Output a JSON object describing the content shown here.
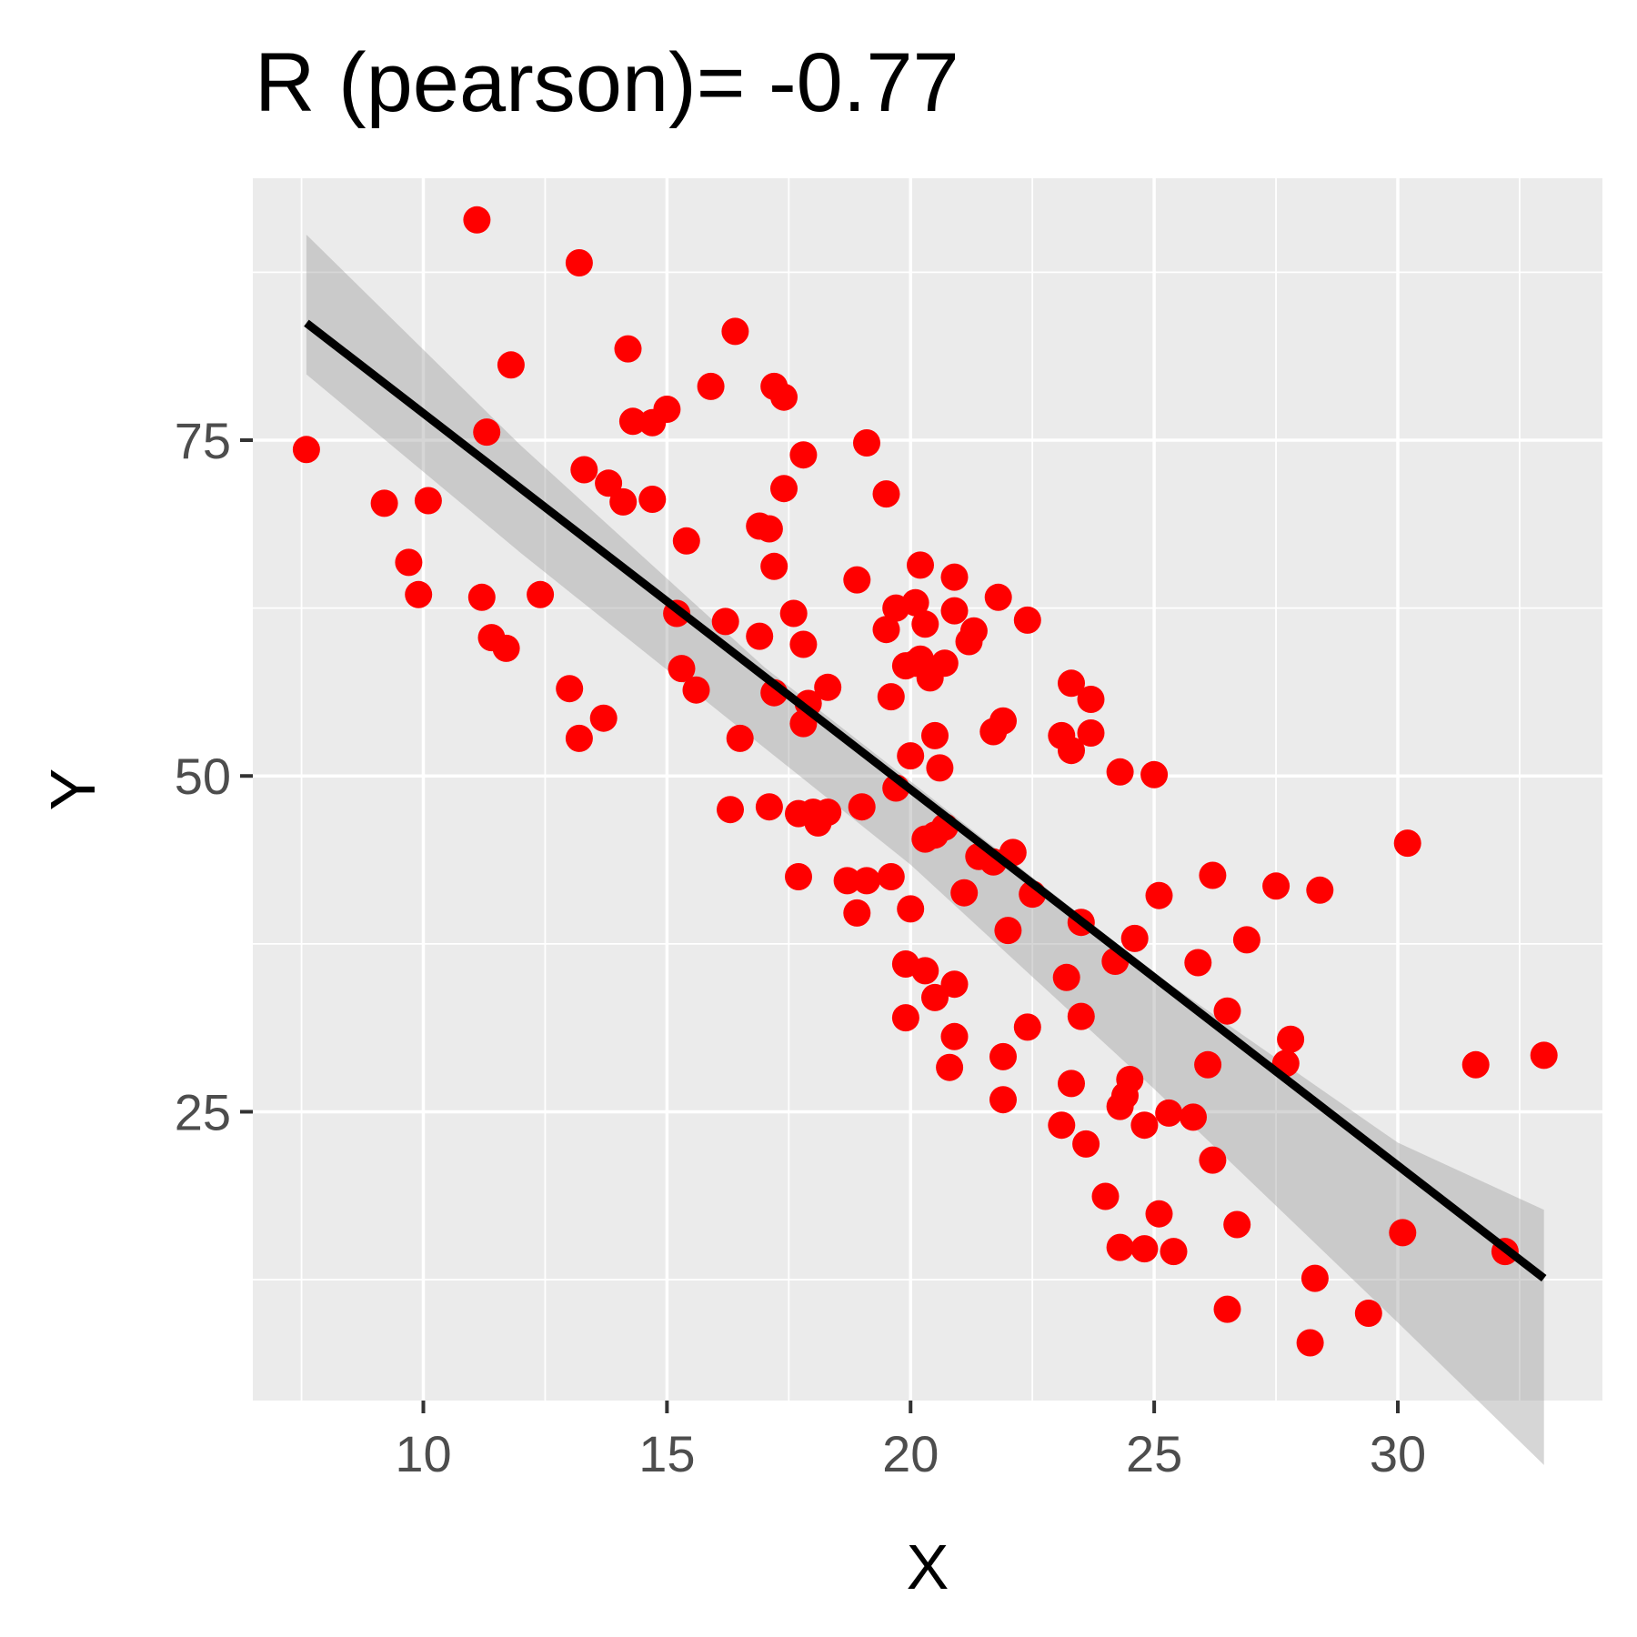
{
  "chart_data": {
    "type": "scatter",
    "title": "R (pearson)= -0.77",
    "xlabel": "X",
    "ylabel": "Y",
    "xlim": [
      6.5,
      34.2
    ],
    "ylim": [
      3.5,
      94.5
    ],
    "x_ticks": [
      10,
      15,
      20,
      25,
      30
    ],
    "y_ticks": [
      25,
      50,
      75
    ],
    "x_tick_labels": [
      "10",
      "15",
      "20",
      "25",
      "30"
    ],
    "y_tick_labels": [
      "25",
      "50",
      "75"
    ],
    "grid": true,
    "point_color": "#ff0000",
    "line_color": "#000000",
    "band_color": "#999999",
    "panel_color": "#ebebeb",
    "points": [
      [
        7.6,
        74.3
      ],
      [
        9.2,
        70.3
      ],
      [
        9.7,
        65.9
      ],
      [
        9.9,
        63.5
      ],
      [
        10.1,
        70.5
      ],
      [
        11.1,
        91.4
      ],
      [
        11.2,
        63.3
      ],
      [
        11.3,
        75.6
      ],
      [
        11.4,
        60.3
      ],
      [
        11.7,
        59.5
      ],
      [
        11.8,
        80.6
      ],
      [
        12.4,
        63.5
      ],
      [
        13.0,
        56.5
      ],
      [
        13.2,
        52.8
      ],
      [
        13.2,
        88.2
      ],
      [
        13.3,
        72.8
      ],
      [
        13.7,
        54.3
      ],
      [
        13.8,
        71.8
      ],
      [
        14.1,
        70.4
      ],
      [
        14.2,
        81.8
      ],
      [
        14.3,
        76.4
      ],
      [
        14.7,
        76.3
      ],
      [
        14.7,
        70.6
      ],
      [
        15.0,
        77.3
      ],
      [
        15.2,
        62.1
      ],
      [
        15.3,
        58.0
      ],
      [
        15.4,
        67.5
      ],
      [
        15.6,
        56.4
      ],
      [
        15.9,
        79.0
      ],
      [
        16.2,
        61.5
      ],
      [
        16.3,
        47.5
      ],
      [
        16.4,
        83.1
      ],
      [
        16.5,
        52.8
      ],
      [
        16.9,
        60.4
      ],
      [
        16.9,
        68.6
      ],
      [
        17.1,
        68.4
      ],
      [
        17.1,
        47.7
      ],
      [
        17.2,
        79.0
      ],
      [
        17.2,
        65.6
      ],
      [
        17.2,
        56.2
      ],
      [
        17.4,
        78.2
      ],
      [
        17.4,
        71.4
      ],
      [
        17.6,
        62.1
      ],
      [
        17.7,
        47.2
      ],
      [
        17.7,
        42.5
      ],
      [
        17.8,
        73.9
      ],
      [
        17.8,
        59.8
      ],
      [
        17.8,
        53.9
      ],
      [
        17.9,
        55.4
      ],
      [
        18.0,
        47.3
      ],
      [
        18.1,
        46.5
      ],
      [
        18.3,
        47.3
      ],
      [
        18.3,
        56.6
      ],
      [
        18.7,
        42.2
      ],
      [
        18.9,
        64.6
      ],
      [
        18.9,
        39.8
      ],
      [
        19.0,
        47.7
      ],
      [
        19.1,
        42.2
      ],
      [
        19.1,
        74.8
      ],
      [
        19.5,
        71.0
      ],
      [
        19.5,
        60.9
      ],
      [
        19.6,
        55.9
      ],
      [
        19.6,
        42.5
      ],
      [
        19.7,
        49.1
      ],
      [
        19.7,
        62.5
      ],
      [
        19.9,
        36.0
      ],
      [
        19.9,
        32.0
      ],
      [
        19.9,
        58.2
      ],
      [
        20.0,
        40.1
      ],
      [
        20.0,
        51.5
      ],
      [
        20.1,
        58.4
      ],
      [
        20.1,
        62.9
      ],
      [
        20.2,
        65.7
      ],
      [
        20.2,
        58.7
      ],
      [
        20.3,
        45.3
      ],
      [
        20.3,
        35.5
      ],
      [
        20.3,
        61.3
      ],
      [
        20.4,
        57.3
      ],
      [
        20.5,
        45.6
      ],
      [
        20.5,
        33.5
      ],
      [
        20.5,
        53.0
      ],
      [
        20.6,
        50.6
      ],
      [
        20.7,
        46.2
      ],
      [
        20.7,
        58.4
      ],
      [
        20.8,
        28.3
      ],
      [
        20.9,
        34.5
      ],
      [
        20.9,
        30.6
      ],
      [
        20.9,
        62.3
      ],
      [
        20.9,
        64.8
      ],
      [
        21.1,
        41.3
      ],
      [
        21.2,
        60.0
      ],
      [
        21.3,
        60.8
      ],
      [
        21.4,
        44.0
      ],
      [
        21.7,
        53.3
      ],
      [
        21.7,
        43.6
      ],
      [
        21.8,
        63.3
      ],
      [
        21.9,
        29.1
      ],
      [
        21.9,
        25.9
      ],
      [
        21.9,
        54.1
      ],
      [
        22.0,
        38.5
      ],
      [
        22.1,
        44.3
      ],
      [
        22.4,
        31.3
      ],
      [
        22.4,
        61.6
      ],
      [
        22.5,
        41.2
      ],
      [
        23.1,
        24.0
      ],
      [
        23.1,
        53.0
      ],
      [
        23.2,
        35.0
      ],
      [
        23.3,
        51.9
      ],
      [
        23.3,
        27.1
      ],
      [
        23.3,
        56.9
      ],
      [
        23.5,
        39.1
      ],
      [
        23.5,
        32.1
      ],
      [
        23.6,
        22.6
      ],
      [
        23.7,
        53.2
      ],
      [
        23.7,
        55.7
      ],
      [
        24.0,
        18.7
      ],
      [
        24.2,
        36.2
      ],
      [
        24.3,
        50.3
      ],
      [
        24.3,
        14.9
      ],
      [
        24.3,
        25.4
      ],
      [
        24.4,
        26.2
      ],
      [
        24.5,
        27.4
      ],
      [
        24.6,
        37.9
      ],
      [
        24.8,
        24.0
      ],
      [
        24.8,
        14.8
      ],
      [
        25.0,
        50.1
      ],
      [
        25.1,
        17.4
      ],
      [
        25.1,
        41.1
      ],
      [
        25.3,
        24.9
      ],
      [
        25.4,
        14.6
      ],
      [
        25.8,
        24.6
      ],
      [
        25.9,
        36.1
      ],
      [
        26.1,
        28.5
      ],
      [
        26.2,
        42.6
      ],
      [
        26.2,
        21.4
      ],
      [
        26.5,
        32.5
      ],
      [
        26.5,
        10.3
      ],
      [
        26.7,
        16.6
      ],
      [
        26.9,
        37.8
      ],
      [
        27.5,
        41.8
      ],
      [
        27.7,
        28.6
      ],
      [
        27.8,
        30.4
      ],
      [
        28.3,
        12.6
      ],
      [
        28.4,
        41.5
      ],
      [
        28.2,
        7.8
      ],
      [
        29.4,
        10.0
      ],
      [
        30.1,
        16.0
      ],
      [
        30.2,
        45.0
      ],
      [
        31.6,
        28.5
      ],
      [
        32.2,
        14.6
      ],
      [
        33.0,
        29.2
      ]
    ],
    "fit": {
      "x_start": 7.6,
      "x_end": 33.0,
      "slope": -2.8,
      "intercept": 105.0
    },
    "band": {
      "x": [
        7.6,
        12.0,
        17.0,
        20.0,
        25.0,
        30.0,
        33.0
      ],
      "lower": [
        79.9,
        66.6,
        52.1,
        43.4,
        26.7,
        9.3,
        -1.3
      ],
      "upper": [
        90.3,
        74.6,
        58.1,
        49.6,
        35.3,
        22.7,
        17.7
      ]
    }
  }
}
